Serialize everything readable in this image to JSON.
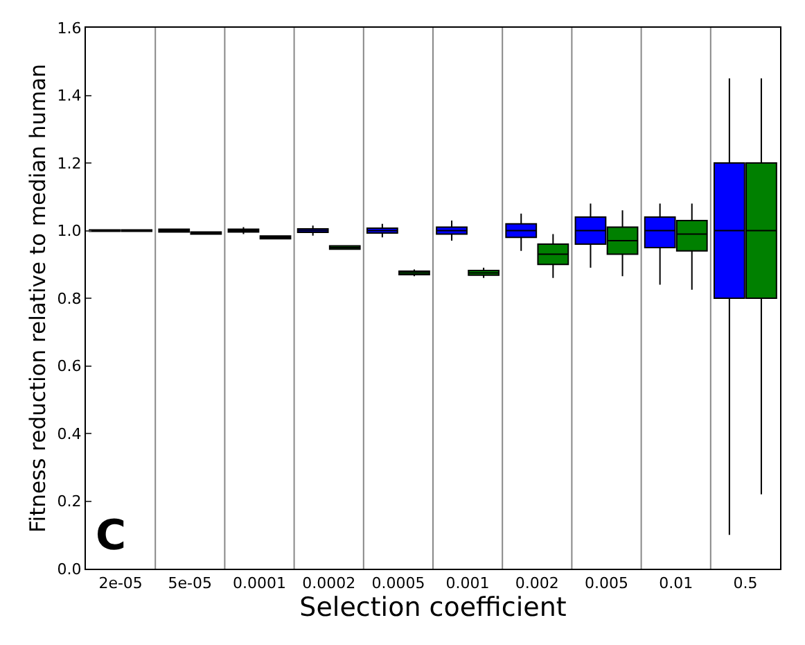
{
  "chart_data": {
    "type": "box",
    "xlabel": "Selection coefficient",
    "ylabel": "Fitness reduction relative to median human",
    "annotations": [
      "C"
    ],
    "categories": [
      "2e-05",
      "5e-05",
      "0.0001",
      "0.0002",
      "0.0005",
      "0.001",
      "0.002",
      "0.005",
      "0.01",
      "0.5"
    ],
    "ylim": [
      0,
      1.6
    ],
    "yticks": [
      {
        "value": 0,
        "label": "0.0"
      },
      {
        "value": 0.2,
        "label": "0.2"
      },
      {
        "value": 0.4,
        "label": "0.4"
      },
      {
        "value": 0.6,
        "label": "0.6"
      },
      {
        "value": 0.8,
        "label": "0.8"
      },
      {
        "value": 1.0,
        "label": "1.0"
      },
      {
        "value": 1.2,
        "label": "1.2"
      },
      {
        "value": 1.4,
        "label": "1.4"
      },
      {
        "value": 1.6,
        "label": "1.6"
      }
    ],
    "grid": "x",
    "series": [
      {
        "color": "#0000ff",
        "boxes": [
          {
            "low": 0.998,
            "q1": 0.998,
            "median": 1.0,
            "q3": 1.002,
            "high": 1.002
          },
          {
            "low": 0.996,
            "q1": 0.996,
            "median": 1.0,
            "q3": 1.004,
            "high": 1.004
          },
          {
            "low": 0.99,
            "q1": 0.996,
            "median": 1.0,
            "q3": 1.004,
            "high": 1.01
          },
          {
            "low": 0.985,
            "q1": 0.995,
            "median": 1.0,
            "q3": 1.005,
            "high": 1.015
          },
          {
            "low": 0.98,
            "q1": 0.993,
            "median": 1.0,
            "q3": 1.007,
            "high": 1.02
          },
          {
            "low": 0.97,
            "q1": 0.99,
            "median": 1.0,
            "q3": 1.01,
            "high": 1.03
          },
          {
            "low": 0.94,
            "q1": 0.98,
            "median": 1.0,
            "q3": 1.02,
            "high": 1.05
          },
          {
            "low": 0.89,
            "q1": 0.96,
            "median": 1.0,
            "q3": 1.04,
            "high": 1.08
          },
          {
            "low": 0.84,
            "q1": 0.95,
            "median": 1.0,
            "q3": 1.04,
            "high": 1.08
          },
          {
            "low": 0.1,
            "q1": 0.8,
            "median": 1.0,
            "q3": 1.2,
            "high": 1.45
          }
        ]
      },
      {
        "color": "#008000",
        "boxes": [
          {
            "low": 0.998,
            "q1": 0.998,
            "median": 1.0,
            "q3": 1.002,
            "high": 1.002
          },
          {
            "low": 0.99,
            "q1": 0.99,
            "median": 0.993,
            "q3": 0.996,
            "high": 0.996
          },
          {
            "low": 0.976,
            "q1": 0.976,
            "median": 0.98,
            "q3": 0.984,
            "high": 0.984
          },
          {
            "low": 0.945,
            "q1": 0.945,
            "median": 0.95,
            "q3": 0.955,
            "high": 0.955
          },
          {
            "low": 0.865,
            "q1": 0.87,
            "median": 0.875,
            "q3": 0.88,
            "high": 0.885
          },
          {
            "low": 0.86,
            "q1": 0.868,
            "median": 0.875,
            "q3": 0.882,
            "high": 0.89
          },
          {
            "low": 0.86,
            "q1": 0.9,
            "median": 0.93,
            "q3": 0.96,
            "high": 0.99
          },
          {
            "low": 0.865,
            "q1": 0.93,
            "median": 0.97,
            "q3": 1.01,
            "high": 1.06
          },
          {
            "low": 0.825,
            "q1": 0.94,
            "median": 0.99,
            "q3": 1.03,
            "high": 1.08
          },
          {
            "low": 0.22,
            "q1": 0.8,
            "median": 1.0,
            "q3": 1.2,
            "high": 1.45
          }
        ]
      }
    ]
  }
}
